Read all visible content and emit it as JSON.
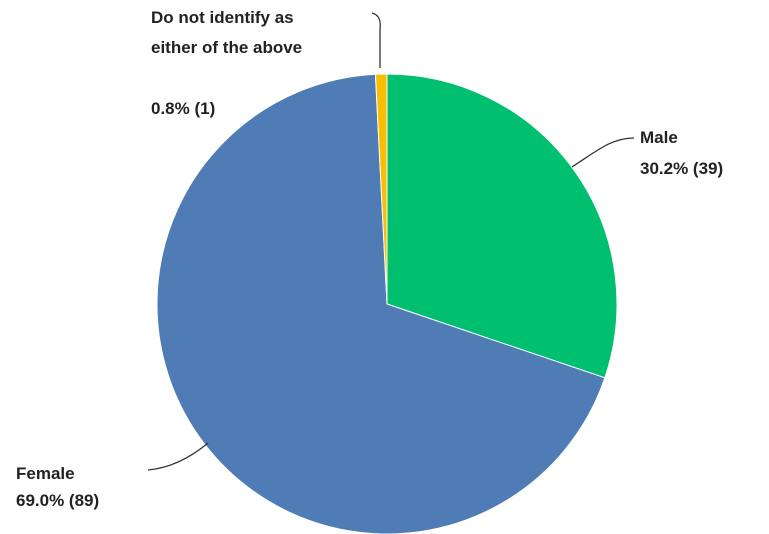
{
  "chart_data": {
    "type": "pie",
    "title": "",
    "start_angle_deg": 0,
    "direction": "clockwise",
    "slices": [
      {
        "name": "Male",
        "percent_label": "30.2% (39)",
        "percent": 30.2,
        "count": 39,
        "color": "#00bf6f"
      },
      {
        "name": "Female",
        "percent_label": "69.0% (89)",
        "percent": 69.0,
        "count": 89,
        "color": "#507cb6"
      },
      {
        "name": "Do not identify as either of the above",
        "name_lines": [
          "Do not identify as",
          "either of the above"
        ],
        "percent_label": "0.8% (1)",
        "percent": 0.8,
        "count": 1,
        "color": "#f9be00"
      }
    ]
  }
}
